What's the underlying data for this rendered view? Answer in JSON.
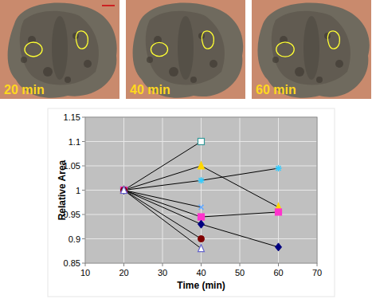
{
  "images": [
    {
      "label": "20 min"
    },
    {
      "label": "40 min"
    },
    {
      "label": "60 min"
    }
  ],
  "chart_data": {
    "type": "line",
    "x_label": "Time (min)",
    "y_label": "Relative Area",
    "x": [
      20,
      40,
      60
    ],
    "xlim": [
      10,
      70
    ],
    "xticks": [
      10,
      20,
      30,
      40,
      50,
      60,
      70
    ],
    "ylim": [
      0.85,
      1.15
    ],
    "yticks": [
      0.85,
      0.9,
      0.95,
      1,
      1.05,
      1.1,
      1.15
    ],
    "grid": true,
    "series": [
      {
        "color": "#339999",
        "marker": "square_open",
        "values": [
          1,
          1.1,
          null
        ]
      },
      {
        "color": "#ffd700",
        "marker": "triangle",
        "values": [
          1,
          1.05,
          0.965
        ]
      },
      {
        "color": "#33ccff",
        "marker": "star",
        "values": [
          1,
          1.02,
          1.045
        ]
      },
      {
        "color": "#66aaff",
        "marker": "x",
        "values": [
          1,
          0.965,
          null
        ]
      },
      {
        "color": "#ff33cc",
        "marker": "square",
        "values": [
          1,
          0.945,
          0.955
        ]
      },
      {
        "color": "#000080",
        "marker": "diamond",
        "values": [
          1,
          0.93,
          0.883
        ]
      },
      {
        "color": "#800000",
        "marker": "circle",
        "values": [
          1,
          0.9,
          null
        ]
      },
      {
        "color": "#6666cc",
        "marker": "triangle_open",
        "values": [
          1,
          0.88,
          null
        ]
      }
    ]
  }
}
